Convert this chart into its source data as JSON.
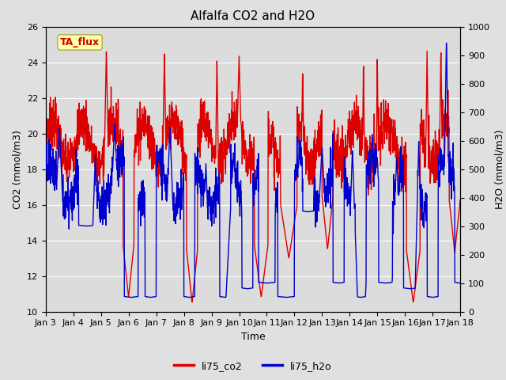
{
  "title": "Alfalfa CO2 and H2O",
  "xlabel": "Time",
  "ylabel_left": "CO2 (mmol/m3)",
  "ylabel_right": "H2O (mmol/m3)",
  "ylim_left": [
    10,
    26
  ],
  "ylim_right": [
    0,
    1000
  ],
  "yticks_left": [
    10,
    12,
    14,
    16,
    18,
    20,
    22,
    24,
    26
  ],
  "yticks_right": [
    0,
    100,
    200,
    300,
    400,
    500,
    600,
    700,
    800,
    900,
    1000
  ],
  "color_co2": "#dd0000",
  "color_h2o": "#0000cc",
  "linewidth": 1.0,
  "bg_color": "#e0e0e0",
  "plot_bg_color": "#dcdcdc",
  "legend_co2": "li75_co2",
  "legend_h2o": "li75_h2o",
  "annotation_text": "TA_flux",
  "grid_color": "#ffffff",
  "title_fontsize": 11,
  "label_fontsize": 9,
  "tick_fontsize": 8
}
